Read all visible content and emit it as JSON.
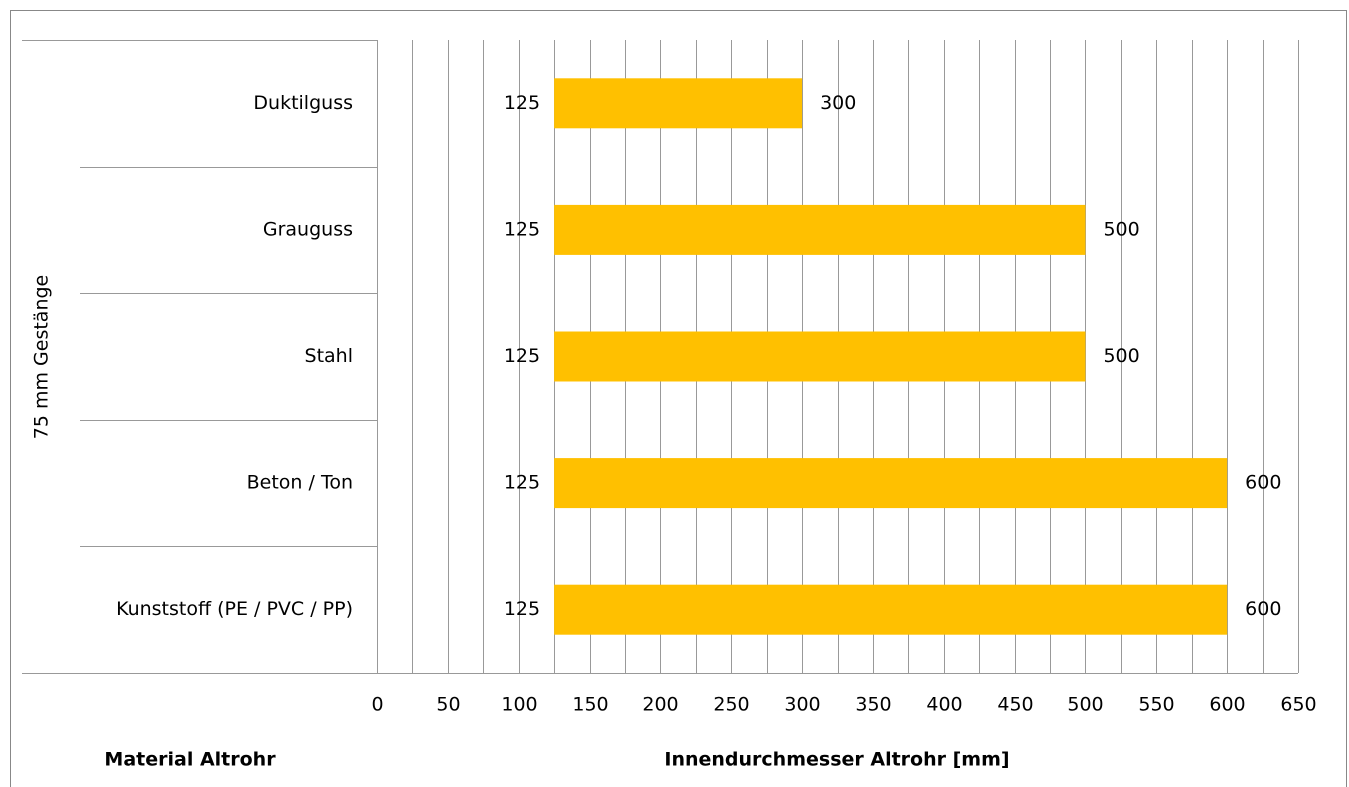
{
  "chart_data": {
    "type": "floating-bar",
    "y_group_label": "75 mm Gestänge",
    "category_axis_title": "Material Altrohr",
    "x_axis_title": "Innendurchmesser Altrohr [mm]",
    "categories": [
      "Duktilguss",
      "Grauguss",
      "Stahl",
      "Beton / Ton",
      "Kunststoff (PE / PVC / PP)"
    ],
    "low": [
      125,
      125,
      125,
      125,
      125
    ],
    "high": [
      300,
      500,
      500,
      600,
      600
    ],
    "color": "#ffc000",
    "xlim": [
      0,
      650
    ],
    "xticks": [
      0,
      50,
      100,
      150,
      200,
      250,
      300,
      350,
      400,
      450,
      500,
      550,
      600,
      650
    ],
    "xminorticks": [
      25,
      75,
      125,
      175,
      225,
      275,
      325,
      375,
      425,
      475,
      525,
      575,
      625
    ],
    "grid": true
  }
}
